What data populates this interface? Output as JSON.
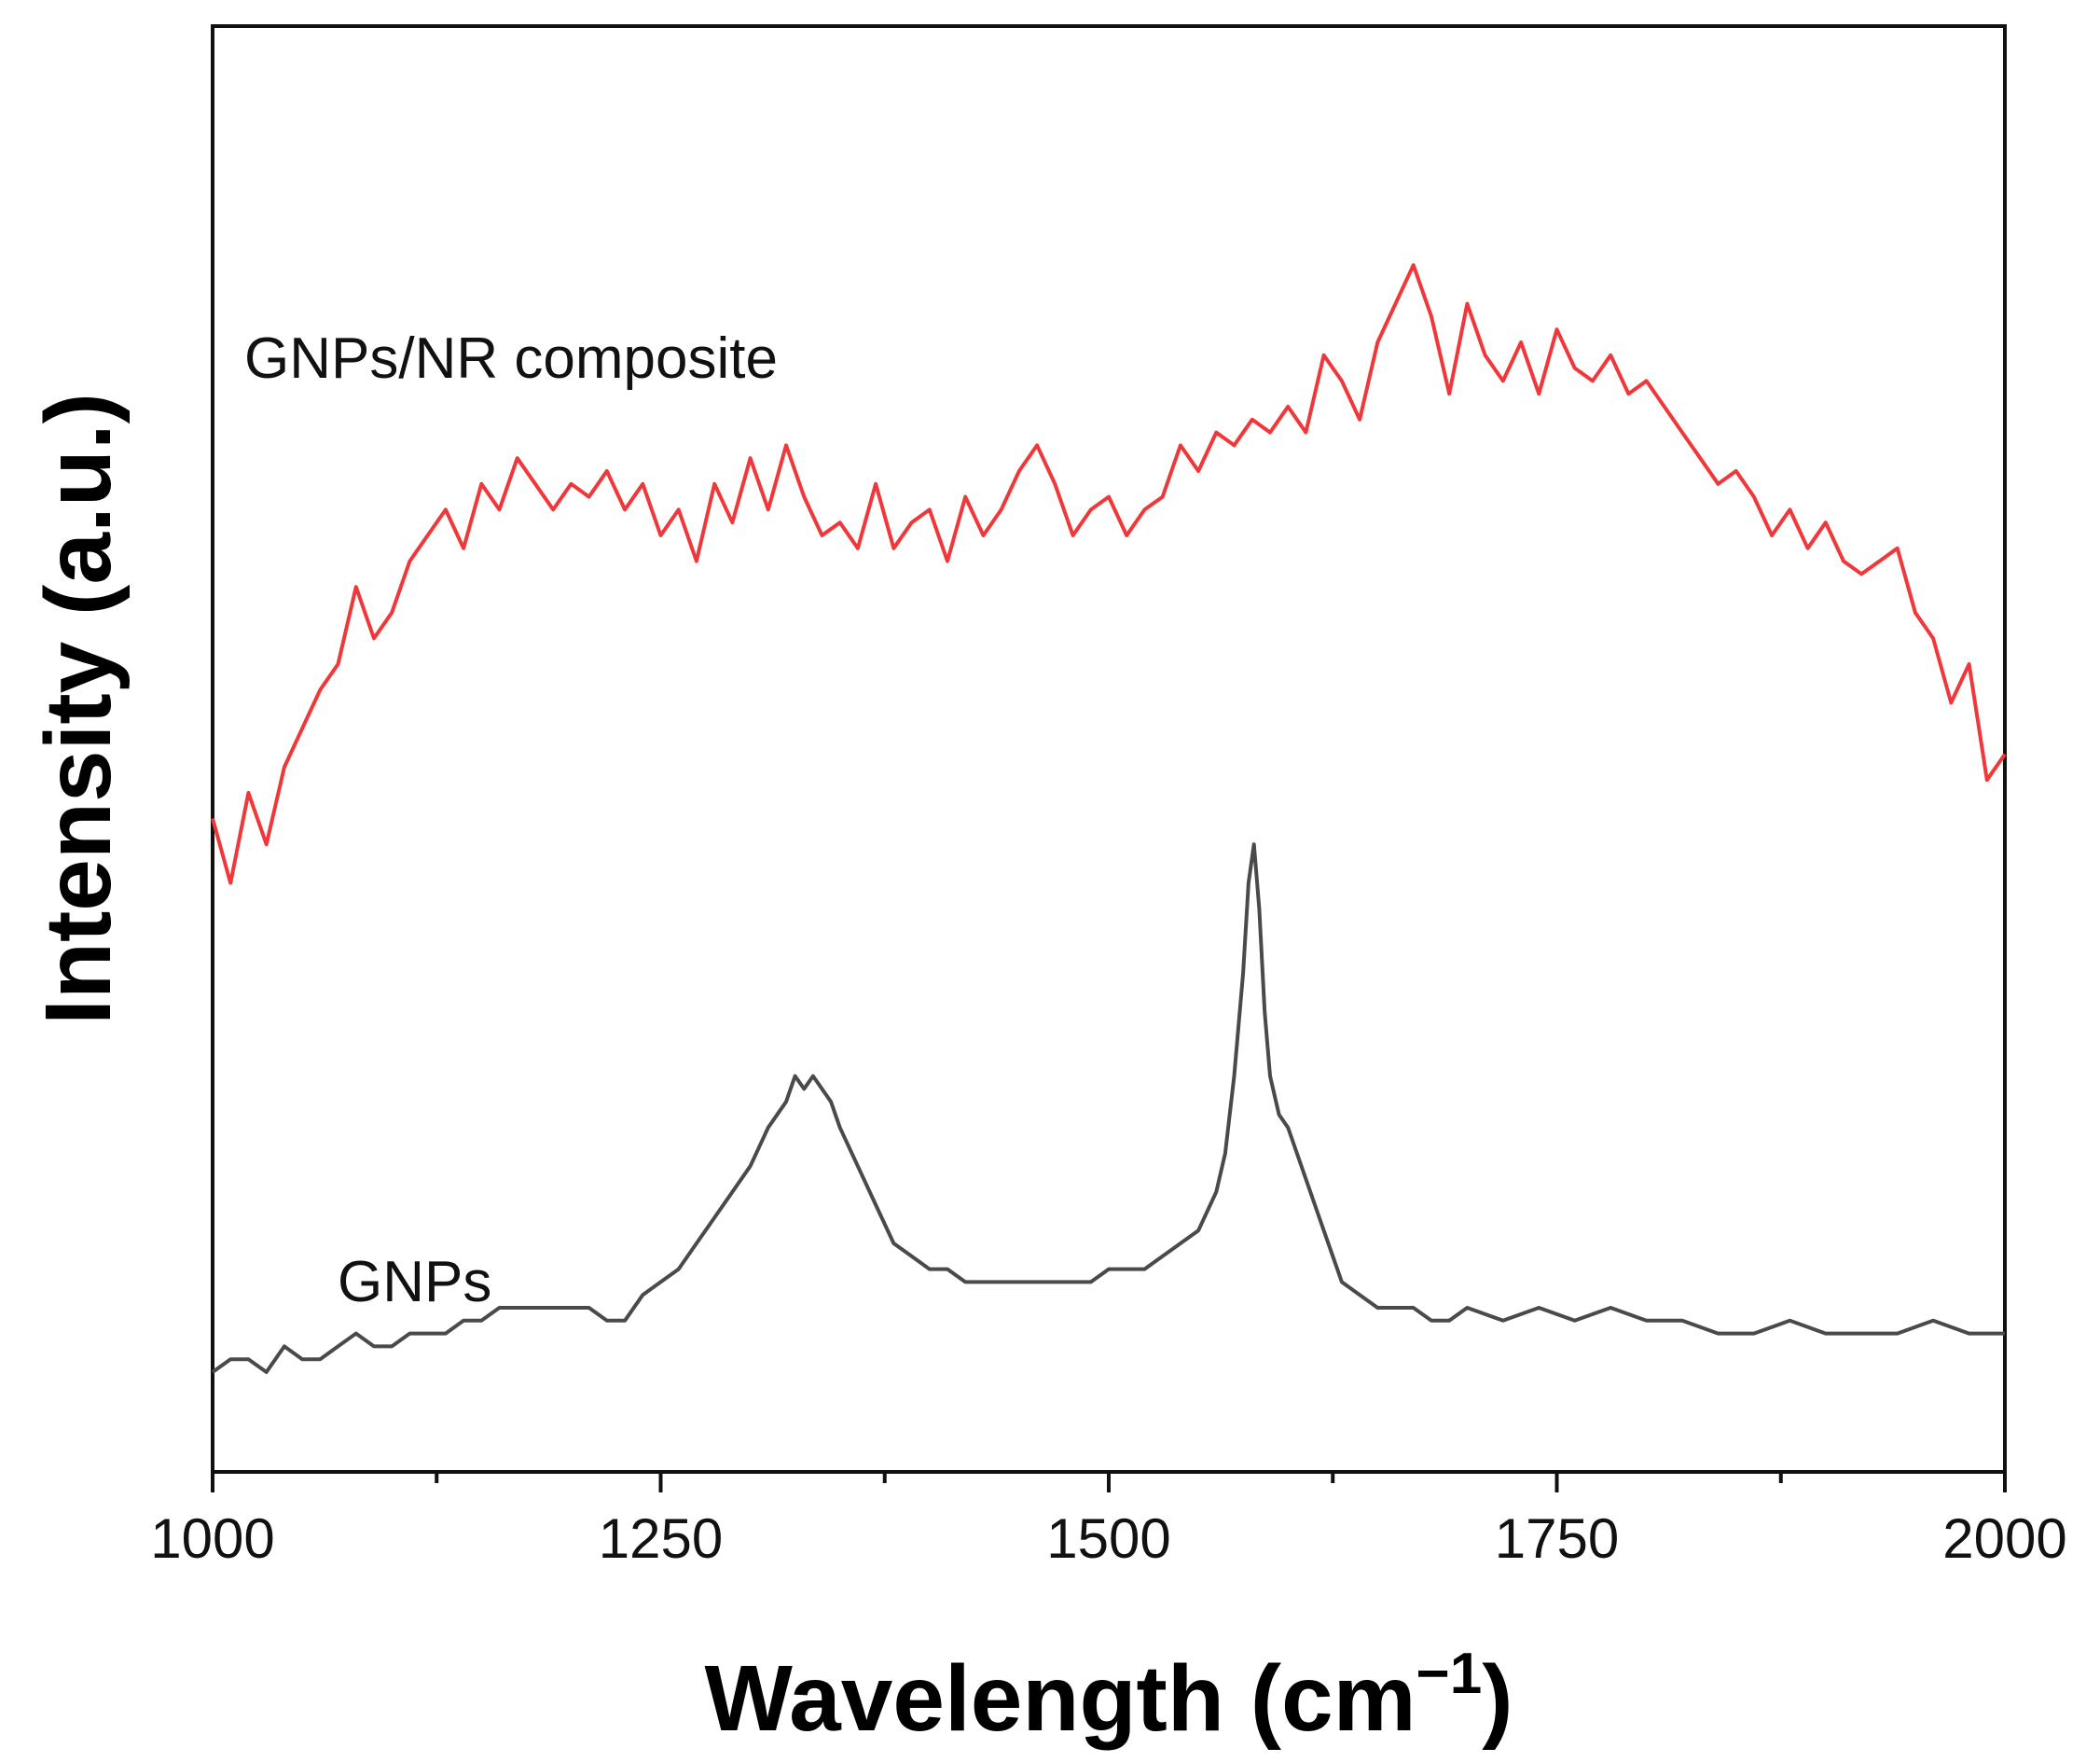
{
  "chart_data": {
    "type": "line",
    "xlabel": "Wavelength (cm",
    "xlabel_sup": "−1",
    "xlabel_end": ")",
    "ylabel": "Intensity (a.u.)",
    "xlim": [
      1000,
      2000
    ],
    "ylim": [
      0,
      1
    ],
    "x_ticks": [
      1000,
      1250,
      1500,
      1750,
      2000
    ],
    "x_tick_labels": [
      "1000",
      "1250",
      "1500",
      "1750",
      "2000"
    ],
    "x_minor_ticks": [
      1125,
      1375,
      1625,
      1875
    ],
    "y_ticks_shown": false,
    "grid": false,
    "legend": "none",
    "series": [
      {
        "name": "GNPs/NR composite",
        "color": "#f0373a",
        "x": [
          1000,
          1010,
          1020,
          1030,
          1040,
          1050,
          1060,
          1070,
          1080,
          1090,
          1100,
          1110,
          1120,
          1130,
          1140,
          1150,
          1160,
          1170,
          1180,
          1190,
          1200,
          1210,
          1220,
          1230,
          1240,
          1250,
          1260,
          1270,
          1280,
          1290,
          1300,
          1310,
          1320,
          1330,
          1340,
          1350,
          1360,
          1370,
          1380,
          1390,
          1400,
          1410,
          1420,
          1430,
          1440,
          1450,
          1460,
          1470,
          1480,
          1490,
          1500,
          1510,
          1520,
          1530,
          1540,
          1550,
          1560,
          1570,
          1580,
          1590,
          1600,
          1610,
          1620,
          1630,
          1640,
          1650,
          1660,
          1670,
          1680,
          1690,
          1700,
          1710,
          1720,
          1730,
          1740,
          1750,
          1760,
          1770,
          1780,
          1790,
          1800,
          1810,
          1820,
          1830,
          1840,
          1850,
          1860,
          1870,
          1880,
          1890,
          1900,
          1910,
          1920,
          1930,
          1940,
          1950,
          1960,
          1970,
          1980,
          1990,
          2000
        ],
        "y": [
          0.48,
          0.43,
          0.5,
          0.46,
          0.52,
          0.55,
          0.58,
          0.6,
          0.66,
          0.62,
          0.64,
          0.68,
          0.7,
          0.72,
          0.69,
          0.74,
          0.72,
          0.76,
          0.74,
          0.72,
          0.74,
          0.73,
          0.75,
          0.72,
          0.74,
          0.7,
          0.72,
          0.68,
          0.74,
          0.71,
          0.76,
          0.72,
          0.77,
          0.73,
          0.7,
          0.71,
          0.69,
          0.74,
          0.69,
          0.71,
          0.72,
          0.68,
          0.73,
          0.7,
          0.72,
          0.75,
          0.77,
          0.74,
          0.7,
          0.72,
          0.73,
          0.7,
          0.72,
          0.73,
          0.77,
          0.75,
          0.78,
          0.77,
          0.79,
          0.78,
          0.8,
          0.78,
          0.84,
          0.82,
          0.79,
          0.85,
          0.88,
          0.91,
          0.87,
          0.81,
          0.88,
          0.84,
          0.82,
          0.85,
          0.81,
          0.86,
          0.83,
          0.82,
          0.84,
          0.81,
          0.82,
          0.8,
          0.78,
          0.76,
          0.74,
          0.75,
          0.73,
          0.7,
          0.72,
          0.69,
          0.71,
          0.68,
          0.67,
          0.68,
          0.69,
          0.64,
          0.62,
          0.57,
          0.6,
          0.51,
          0.53
        ]
      },
      {
        "name": "GNPs",
        "color": "#4a4a4a",
        "x": [
          1000,
          1010,
          1020,
          1030,
          1040,
          1050,
          1060,
          1070,
          1080,
          1090,
          1100,
          1110,
          1120,
          1130,
          1140,
          1150,
          1160,
          1170,
          1180,
          1190,
          1200,
          1210,
          1220,
          1230,
          1240,
          1250,
          1260,
          1270,
          1280,
          1290,
          1300,
          1310,
          1320,
          1325,
          1330,
          1335,
          1340,
          1345,
          1350,
          1360,
          1370,
          1380,
          1390,
          1400,
          1410,
          1420,
          1430,
          1440,
          1450,
          1460,
          1470,
          1480,
          1490,
          1500,
          1510,
          1520,
          1530,
          1540,
          1550,
          1560,
          1565,
          1570,
          1575,
          1578,
          1581,
          1584,
          1587,
          1590,
          1595,
          1600,
          1605,
          1610,
          1615,
          1620,
          1625,
          1630,
          1640,
          1650,
          1660,
          1670,
          1680,
          1690,
          1700,
          1720,
          1740,
          1760,
          1780,
          1800,
          1820,
          1840,
          1860,
          1880,
          1900,
          1920,
          1940,
          1960,
          1980,
          2000
        ],
        "y": [
          0.05,
          0.06,
          0.06,
          0.05,
          0.07,
          0.06,
          0.06,
          0.07,
          0.08,
          0.07,
          0.07,
          0.08,
          0.08,
          0.08,
          0.09,
          0.09,
          0.1,
          0.1,
          0.1,
          0.1,
          0.1,
          0.1,
          0.09,
          0.09,
          0.11,
          0.12,
          0.13,
          0.15,
          0.17,
          0.19,
          0.21,
          0.24,
          0.26,
          0.28,
          0.27,
          0.28,
          0.27,
          0.26,
          0.24,
          0.21,
          0.18,
          0.15,
          0.14,
          0.13,
          0.13,
          0.12,
          0.12,
          0.12,
          0.12,
          0.12,
          0.12,
          0.12,
          0.12,
          0.13,
          0.13,
          0.13,
          0.14,
          0.15,
          0.16,
          0.19,
          0.22,
          0.28,
          0.36,
          0.43,
          0.46,
          0.41,
          0.33,
          0.28,
          0.25,
          0.24,
          0.22,
          0.2,
          0.18,
          0.16,
          0.14,
          0.12,
          0.11,
          0.1,
          0.1,
          0.1,
          0.09,
          0.09,
          0.1,
          0.09,
          0.1,
          0.09,
          0.1,
          0.09,
          0.09,
          0.08,
          0.08,
          0.09,
          0.08,
          0.08,
          0.08,
          0.09,
          0.08,
          0.08
        ]
      }
    ],
    "annotations": [
      {
        "text": "GNPs/NR composite",
        "series": 0
      },
      {
        "text": "GNPs",
        "series": 1
      }
    ]
  }
}
